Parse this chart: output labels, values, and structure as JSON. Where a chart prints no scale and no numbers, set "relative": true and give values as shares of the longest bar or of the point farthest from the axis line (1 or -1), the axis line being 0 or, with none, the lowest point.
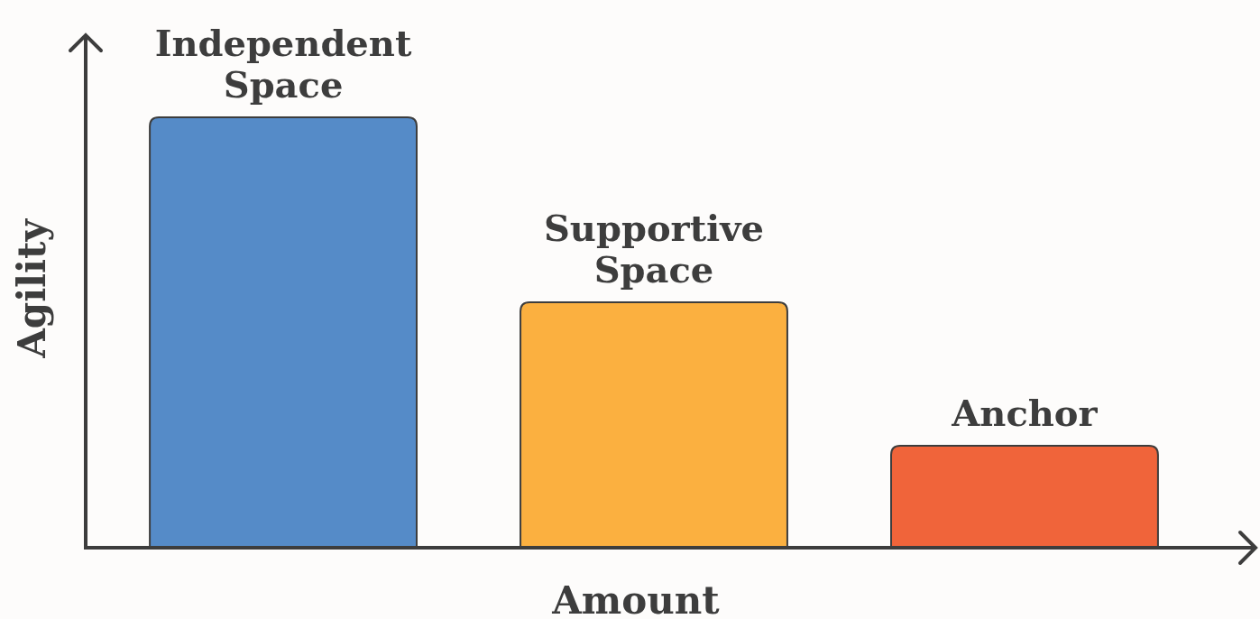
{
  "chart_data": {
    "type": "bar",
    "relative": true,
    "xlabel": "Amount",
    "ylabel": "Agility",
    "categories": [
      "Independent Space",
      "Supportive Space",
      "Anchor"
    ],
    "values": [
      1,
      0.57,
      0.237
    ],
    "colors": [
      "#558bc8",
      "#fbb040",
      "#f0643a"
    ]
  }
}
